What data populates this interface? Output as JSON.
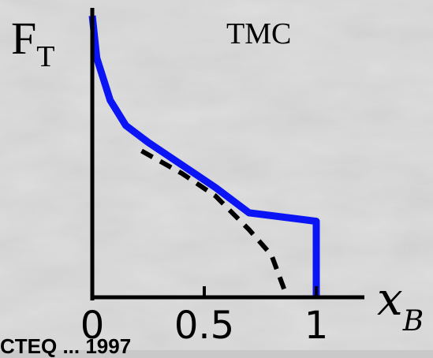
{
  "chart_data": {
    "type": "line",
    "title": "TMC",
    "ylabel": {
      "main": "F",
      "sub": "T"
    },
    "xlabel": {
      "main": "x",
      "sub": "B"
    },
    "xlim": [
      0,
      1
    ],
    "x_ticks": [
      "0",
      "0.5",
      "1"
    ],
    "series": [
      {
        "color": "#0a14f5",
        "style": "solid",
        "x": [
          0,
          0.02,
          0.08,
          0.15,
          0.25,
          0.4,
          0.55,
          0.7,
          1.0,
          1.0
        ],
        "y": [
          1.0,
          0.85,
          0.7,
          0.61,
          0.55,
          0.47,
          0.39,
          0.3,
          0.27,
          0.0
        ]
      },
      {
        "color": "#000000",
        "style": "dashed",
        "x": [
          0.22,
          0.4,
          0.55,
          0.7,
          0.8,
          0.87
        ],
        "y": [
          0.52,
          0.44,
          0.36,
          0.24,
          0.15,
          0.0
        ]
      }
    ],
    "footer": "CTEQ ... 1997"
  }
}
